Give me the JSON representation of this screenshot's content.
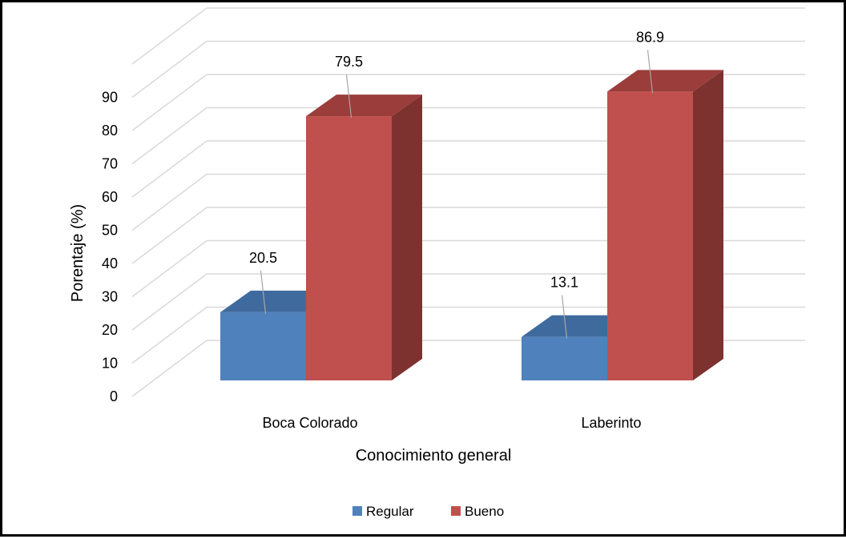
{
  "chart_data": {
    "type": "bar",
    "chart_style": "3d-clustered-column",
    "categories": [
      "Boca Colorado",
      "Laberinto"
    ],
    "series": [
      {
        "name": "Regular",
        "values": [
          20.5,
          13.1
        ],
        "color": "#4F81BD",
        "top_color": "#3F6A9E",
        "side_color": "#35597F"
      },
      {
        "name": "Bueno",
        "values": [
          79.5,
          86.9
        ],
        "color": "#C0504D",
        "top_color": "#9A3D3B",
        "side_color": "#7D3230"
      }
    ],
    "data_labels": {
      "Regular": [
        "20.5",
        "13.1"
      ],
      "Bueno": [
        "79.5",
        "86.9"
      ]
    },
    "title": "",
    "xlabel": "Conocimiento general",
    "ylabel": "Porentaje (%)",
    "ylim": [
      0,
      90
    ],
    "yticks": [
      0,
      10,
      20,
      30,
      40,
      50,
      60,
      70,
      80,
      90
    ],
    "ytick_labels": [
      "0",
      "10",
      "20",
      "30",
      "40",
      "50",
      "60",
      "70",
      "80",
      "90"
    ],
    "grid": true,
    "legend_position": "bottom",
    "grid_color": "#D9D9D9"
  }
}
